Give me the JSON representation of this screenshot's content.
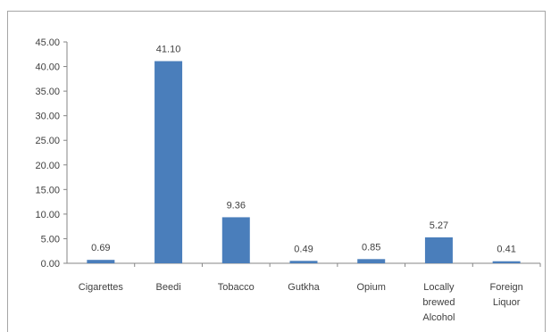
{
  "chart_data": {
    "type": "bar",
    "title": "",
    "xlabel": "",
    "ylabel": "",
    "ylim": [
      0,
      45
    ],
    "ytick_step": 5,
    "ytick_labels": [
      "0.00",
      "5.00",
      "10.00",
      "15.00",
      "20.00",
      "25.00",
      "30.00",
      "35.00",
      "40.00",
      "45.00"
    ],
    "categories": [
      [
        "Cigarettes"
      ],
      [
        "Beedi"
      ],
      [
        "Tobacco"
      ],
      [
        "Gutkha"
      ],
      [
        "Opium"
      ],
      [
        "Locally",
        "brewed",
        "Alcohol"
      ],
      [
        "Foreign",
        "Liquor"
      ]
    ],
    "values": [
      0.69,
      41.1,
      9.36,
      0.49,
      0.85,
      5.27,
      0.41
    ],
    "value_labels": [
      "0.69",
      "41.10",
      "9.36",
      "0.49",
      "0.85",
      "5.27",
      "0.41"
    ],
    "bar_color": "#4a7ebb",
    "grid": false,
    "legend": "none"
  }
}
